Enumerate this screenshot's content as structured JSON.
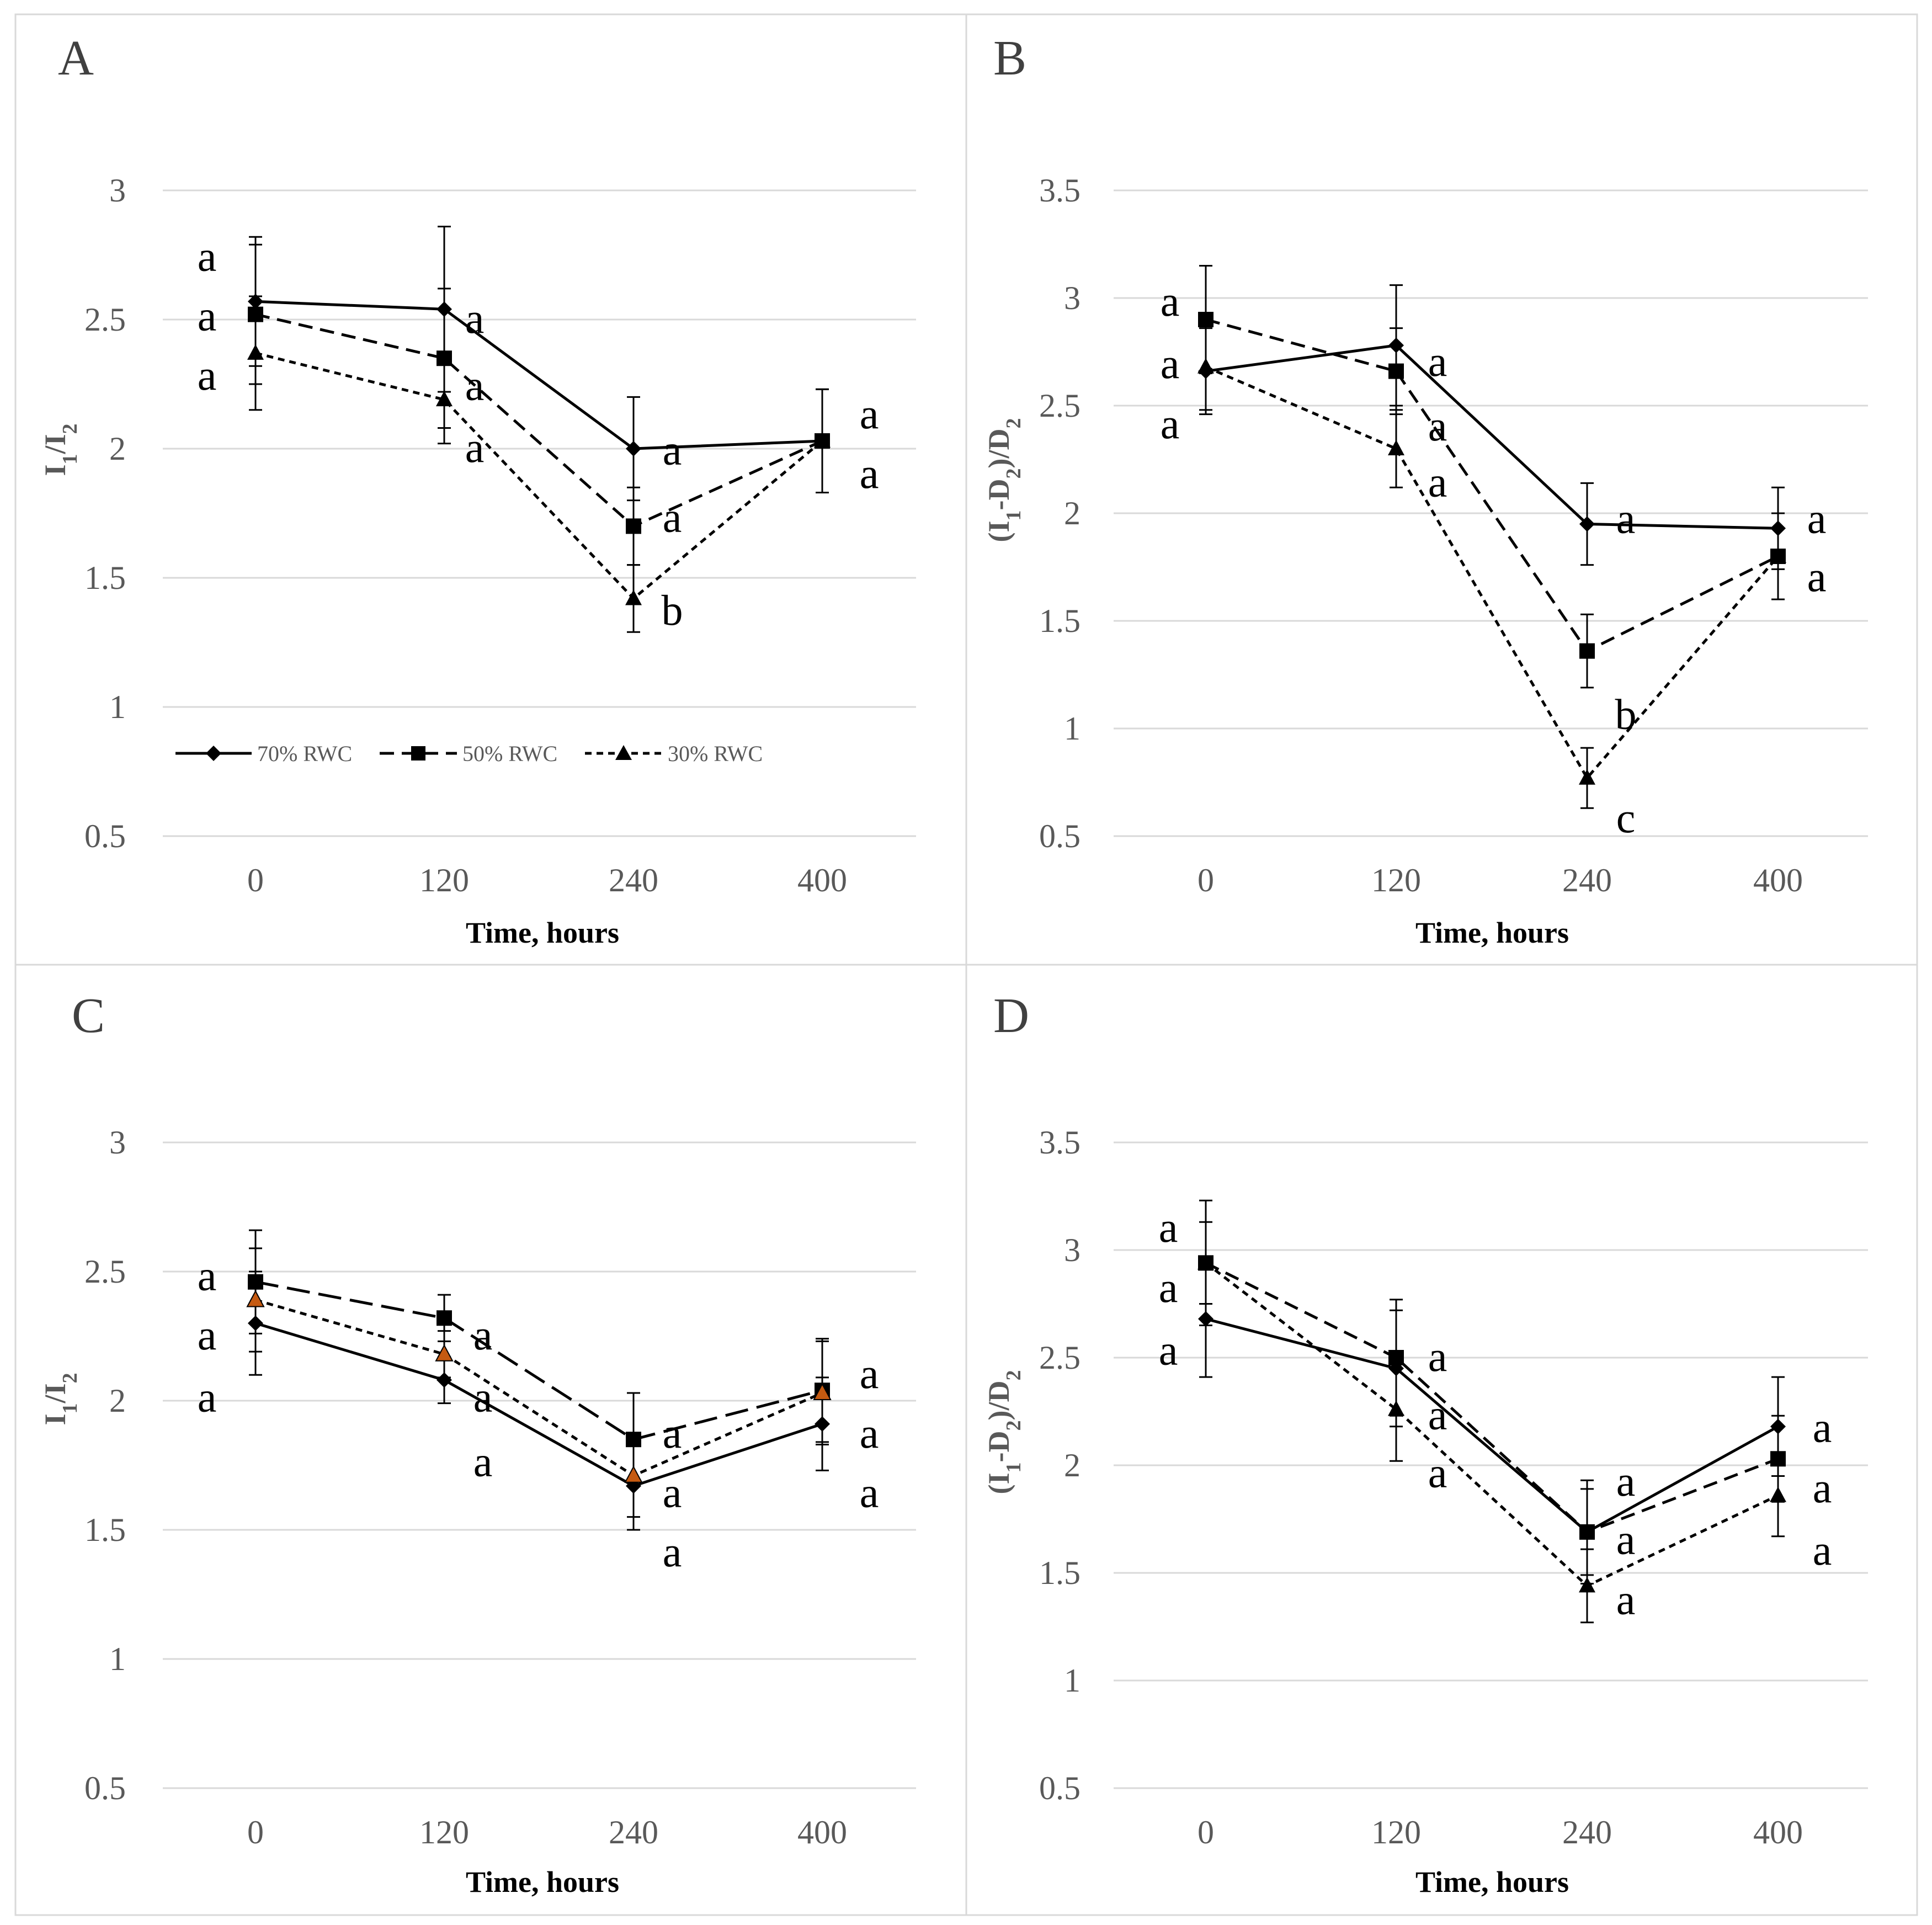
{
  "chart_data": [
    {
      "panel": "A",
      "type": "line",
      "x": [
        "0",
        "120",
        "240",
        "400"
      ],
      "xlabel": "Time, hours",
      "ylabel": "I1/I2",
      "ylim": [
        0.5,
        3
      ],
      "yticks": [
        "0.5",
        "1",
        "1.5",
        "2",
        "2.5",
        "3"
      ],
      "series": [
        {
          "name": "70% RWC",
          "marker": "diamond",
          "dash": "solid",
          "values": [
            2.57,
            2.54,
            2.0,
            2.03
          ],
          "err": [
            0.25,
            0.32,
            0.2,
            0.2
          ],
          "sig": [
            "a",
            "a",
            "a",
            "a"
          ]
        },
        {
          "name": "50% RWC",
          "marker": "square",
          "dash": "dashed",
          "values": [
            2.52,
            2.35,
            1.7,
            2.03
          ],
          "err": [
            0.27,
            0.27,
            0.15,
            0.2
          ],
          "sig": [
            "a",
            "a",
            "a",
            "a"
          ]
        },
        {
          "name": "30% RWC",
          "marker": "triangle",
          "dash": "dotted",
          "values": [
            2.37,
            2.19,
            1.42,
            2.03
          ],
          "err": [
            0.22,
            0.17,
            0.13,
            0.2
          ],
          "sig": [
            "a",
            "a",
            "b",
            "a"
          ]
        }
      ]
    },
    {
      "panel": "B",
      "type": "line",
      "x": [
        "0",
        "120",
        "240",
        "400"
      ],
      "xlabel": "Time, hours",
      "ylabel": "(I1-D2)/D2",
      "ylim": [
        0.5,
        3.5
      ],
      "yticks": [
        "0.5",
        "1",
        "1.5",
        "2",
        "2.5",
        "3",
        "3.5"
      ],
      "series": [
        {
          "name": "70% RWC",
          "marker": "diamond",
          "dash": "solid",
          "values": [
            2.66,
            2.78,
            1.95,
            1.93
          ],
          "err": [
            0.2,
            0.28,
            0.19,
            0.19
          ],
          "sig": [
            "a",
            "a",
            "a",
            "a"
          ]
        },
        {
          "name": "50% RWC",
          "marker": "square",
          "dash": "dashed",
          "values": [
            2.9,
            2.66,
            1.36,
            1.8
          ],
          "err": [
            0.25,
            0.2,
            0.17,
            0.2
          ],
          "sig": [
            "a",
            "a",
            "b",
            "a"
          ]
        },
        {
          "name": "30% RWC",
          "marker": "triangle",
          "dash": "dotted",
          "values": [
            2.68,
            2.3,
            0.77,
            1.8
          ],
          "err": [
            0.2,
            0.18,
            0.14,
            0.2
          ],
          "sig": [
            "a",
            "a",
            "c",
            "a"
          ]
        }
      ]
    },
    {
      "panel": "C",
      "type": "line",
      "x": [
        "0",
        "120",
        "240",
        "400"
      ],
      "xlabel": "Time, hours",
      "ylabel": "I1/I2",
      "ylim": [
        0.5,
        3
      ],
      "yticks": [
        "0.5",
        "1",
        "1.5",
        "2",
        "2.5",
        "3"
      ],
      "series": [
        {
          "name": "70% RWC",
          "marker": "diamond",
          "dash": "solid",
          "values": [
            2.3,
            2.08,
            1.67,
            1.91
          ],
          "err": [
            0.2,
            0.09,
            0.17,
            0.18
          ],
          "sig": [
            "a",
            "a",
            "a",
            "a"
          ]
        },
        {
          "name": "50% RWC",
          "marker": "square",
          "dash": "longdash",
          "values": [
            2.46,
            2.32,
            1.85,
            2.04
          ],
          "err": [
            0.2,
            0.09,
            0.18,
            0.2
          ],
          "sig": [
            "a",
            "a",
            "a",
            "a"
          ]
        },
        {
          "name": "30% RWC",
          "marker": "triangle-orange",
          "dash": "dotted",
          "values": [
            2.39,
            2.18,
            1.71,
            2.03
          ],
          "err": [
            0.2,
            0.09,
            0.16,
            0.2
          ],
          "sig": [
            "a",
            "a",
            "a",
            "a"
          ]
        }
      ]
    },
    {
      "panel": "D",
      "type": "line",
      "x": [
        "0",
        "120",
        "240",
        "400"
      ],
      "xlabel": "Time, hours",
      "ylabel": "(I1-D2)/D2",
      "ylim": [
        0.5,
        3.5
      ],
      "yticks": [
        "0.5",
        "1",
        "1.5",
        "2",
        "2.5",
        "3",
        "3.5"
      ],
      "series": [
        {
          "name": "70% RWC",
          "marker": "diamond",
          "dash": "solid",
          "values": [
            2.68,
            2.45,
            1.69,
            2.18
          ],
          "err": [
            0.27,
            0.27,
            0.2,
            0.23
          ],
          "sig": [
            "a",
            "a",
            "a",
            "a"
          ]
        },
        {
          "name": "50% RWC",
          "marker": "square",
          "dash": "dashed",
          "values": [
            2.94,
            2.5,
            1.69,
            2.03
          ],
          "err": [
            0.29,
            0.27,
            0.24,
            0.2
          ],
          "sig": [
            "a",
            "a",
            "a",
            "a"
          ]
        },
        {
          "name": "30% RWC",
          "marker": "triangle",
          "dash": "dotted",
          "values": [
            2.94,
            2.26,
            1.44,
            1.86
          ],
          "err": [
            0.19,
            0.24,
            0.17,
            0.19
          ],
          "sig": [
            "a",
            "a",
            "a",
            "a"
          ]
        }
      ]
    }
  ],
  "legend": {
    "items": [
      "70% RWC",
      "50% RWC",
      "30% RWC"
    ],
    "placement": "bottom-left of panel A"
  },
  "colors": {
    "line": "#000000",
    "grid": "#d9d9d9",
    "tick_text": "#595959",
    "orange_marker": "#c55a11"
  }
}
